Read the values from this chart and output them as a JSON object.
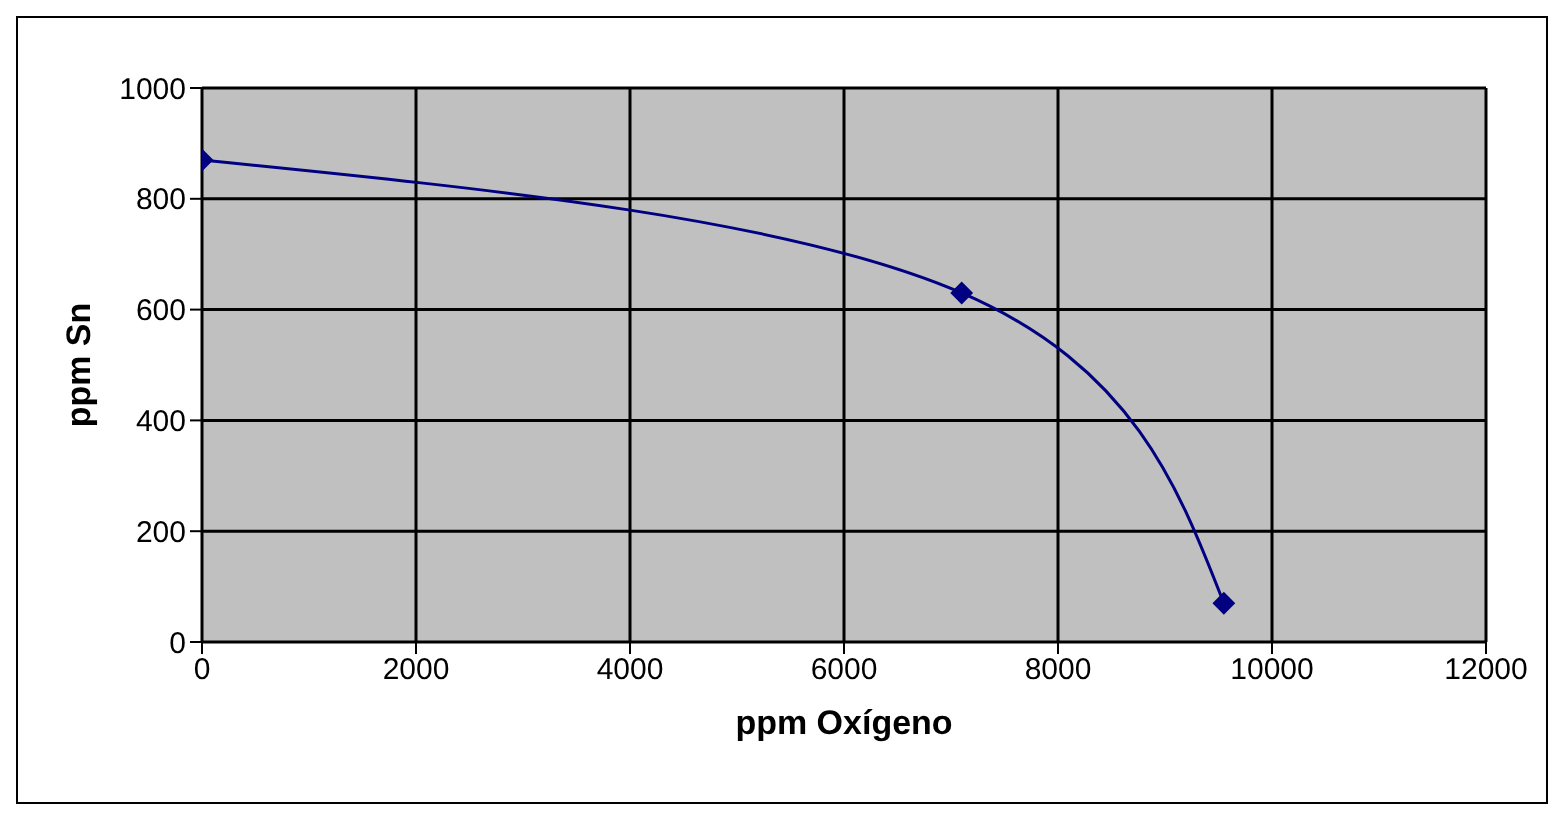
{
  "chart_data": {
    "type": "line",
    "xlabel": "ppm Oxígeno",
    "ylabel": "ppm Sn",
    "x": [
      0,
      7100,
      9550
    ],
    "series": [
      {
        "color": "#000080",
        "values": [
          870,
          630,
          70
        ]
      }
    ],
    "xlim": [
      0,
      12000
    ],
    "xticks": [
      0,
      2000,
      4000,
      6000,
      8000,
      10000,
      12000
    ],
    "ylim": [
      0,
      1000
    ],
    "yticks": [
      0,
      200,
      400,
      600,
      800,
      1000
    ],
    "grid": true,
    "marker": "diamond",
    "line_style": "solid",
    "legend": false
  }
}
